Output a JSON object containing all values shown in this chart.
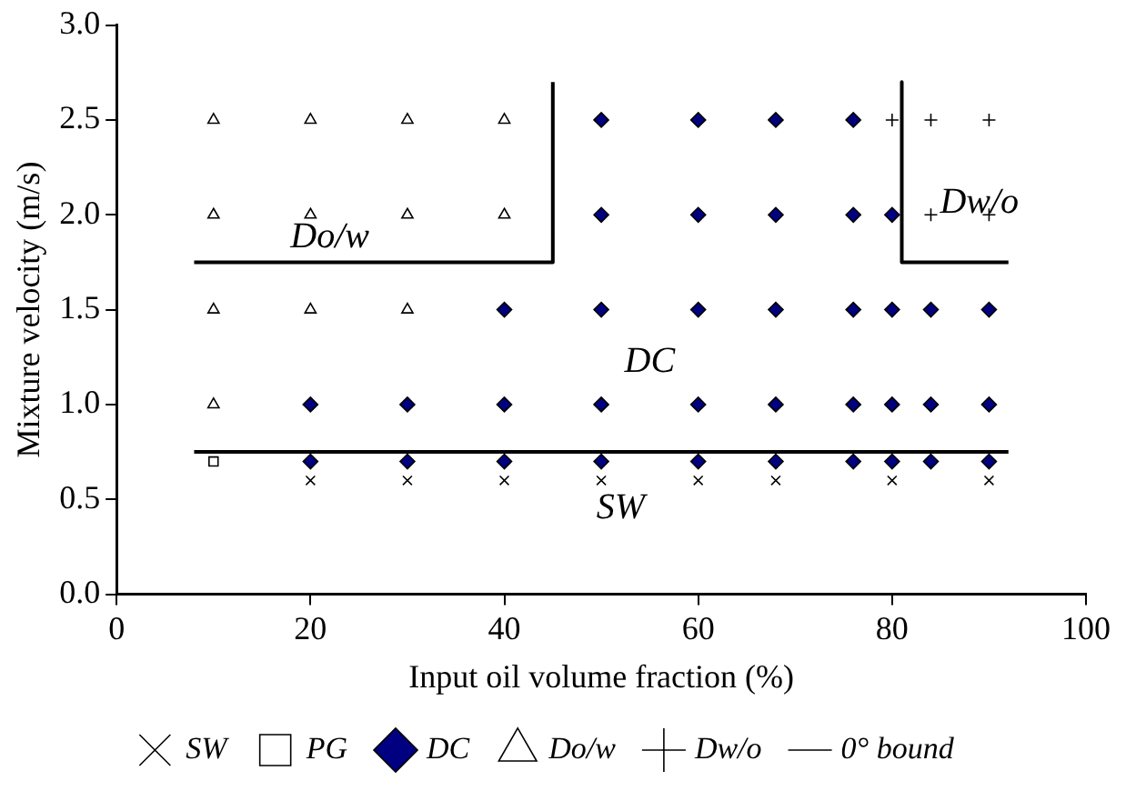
{
  "chart_data": {
    "type": "scatter",
    "xlabel": "Input oil volume fraction (%)",
    "ylabel": "Mixture velocity (m/s)",
    "xlim": [
      0,
      100
    ],
    "xticks": [
      0,
      20,
      40,
      60,
      80,
      100
    ],
    "ylim": [
      0,
      3
    ],
    "yticks": [
      {
        "value": 0,
        "label": "0.0"
      },
      {
        "value": 0.5,
        "label": "0.5"
      },
      {
        "value": 1,
        "label": "1.0"
      },
      {
        "value": 1.5,
        "label": "1.5"
      },
      {
        "value": 2,
        "label": "2.0"
      },
      {
        "value": 2.5,
        "label": "2.5"
      },
      {
        "value": 3,
        "label": "3.0"
      }
    ],
    "grid": false,
    "legend": "bottom",
    "series": [
      {
        "name": "SW",
        "color": "#000000",
        "marker": "cross",
        "x": [
          20,
          30,
          40,
          50,
          60,
          68,
          80,
          90
        ],
        "values": [
          0.6,
          0.6,
          0.6,
          0.6,
          0.6,
          0.6,
          0.6,
          0.6
        ]
      },
      {
        "name": "PG",
        "color": "#000000",
        "marker": "square",
        "x": [
          10
        ],
        "values": [
          0.7
        ]
      },
      {
        "name": "DC",
        "color": "#000080",
        "marker": "diamond",
        "x": [
          20,
          30,
          40,
          50,
          60,
          68,
          76,
          80,
          84,
          90,
          20,
          30,
          40,
          50,
          60,
          68,
          76,
          80,
          84,
          90,
          40,
          50,
          60,
          68,
          76,
          80,
          84,
          90,
          50,
          60,
          68,
          76,
          80,
          50,
          60,
          68,
          76
        ],
        "values": [
          0.7,
          0.7,
          0.7,
          0.7,
          0.7,
          0.7,
          0.7,
          0.7,
          0.7,
          0.7,
          1,
          1,
          1,
          1,
          1,
          1,
          1,
          1,
          1,
          1,
          1.5,
          1.5,
          1.5,
          1.5,
          1.5,
          1.5,
          1.5,
          1.5,
          2,
          2,
          2,
          2,
          2,
          2.5,
          2.5,
          2.5,
          2.5
        ]
      },
      {
        "name": "Do/w",
        "color": "#000000",
        "marker": "triangle",
        "x": [
          10,
          10,
          10,
          10,
          20,
          20,
          20,
          30,
          30,
          30,
          40,
          40
        ],
        "values": [
          1,
          1.5,
          2,
          2.5,
          1.5,
          2,
          2.5,
          1.5,
          2,
          2.5,
          2,
          2.5
        ]
      },
      {
        "name": "Dw/o",
        "color": "#000000",
        "marker": "plus",
        "x": [
          84,
          90,
          80,
          84,
          90
        ],
        "values": [
          2,
          2,
          2.5,
          2.5,
          2.5
        ]
      },
      {
        "name": "0° bound",
        "type": "line",
        "color": "#000000",
        "marker": "none",
        "line_style": "solid",
        "x": [
          8,
          92,
          null,
          8,
          45,
          45,
          null,
          81,
          81,
          92
        ],
        "values": [
          0.75,
          0.75,
          null,
          1.75,
          1.75,
          2.7,
          null,
          2.7,
          1.75,
          1.75
        ]
      }
    ],
    "annotations": [
      "Do/w",
      "Dw/o",
      "DC",
      "SW"
    ]
  }
}
